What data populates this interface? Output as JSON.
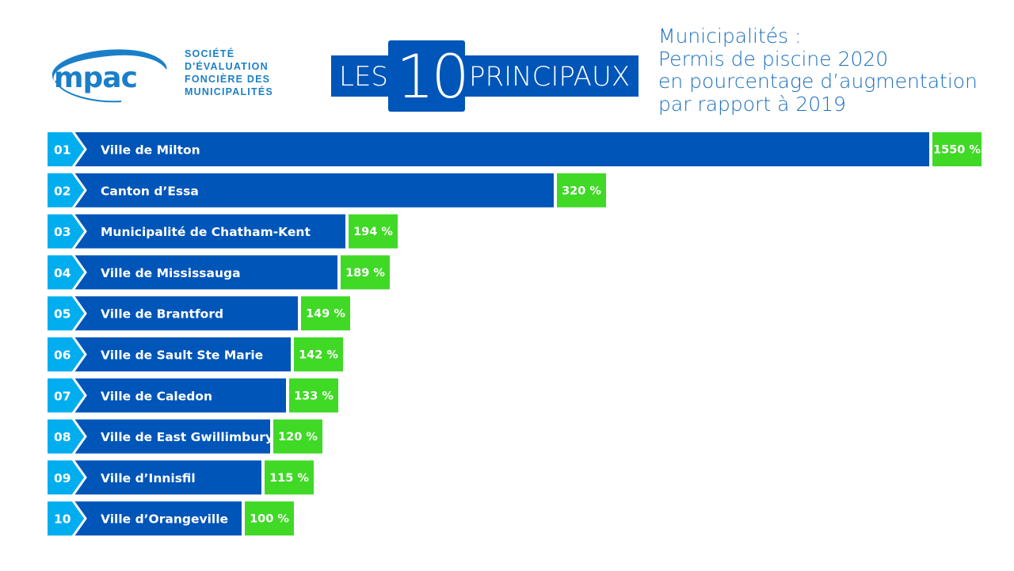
{
  "logo": {
    "wordmark": "mpac",
    "tagline": [
      "SOCIÉTÉ",
      "D'ÉVALUATION",
      "FONCIÈRE DES",
      "MUNICIPALITÉS"
    ]
  },
  "banner": {
    "left": "LES",
    "number": "10",
    "right": "PRINCIPAUX"
  },
  "title": [
    "Municipalités :",
    "Permis de piscine 2020",
    "en pourcentage d’augmentation",
    "par rapport à 2019"
  ],
  "colors": {
    "bar": "#0055b8",
    "rank": "#00aeef",
    "value": "#3fd926",
    "title": "#1a6fc0"
  },
  "chart_data": {
    "type": "bar",
    "orientation": "horizontal",
    "title": "Municipalités : Permis de piscine 2020 en pourcentage d’augmentation par rapport à 2019",
    "ranks": [
      "01",
      "02",
      "03",
      "04",
      "05",
      "06",
      "07",
      "08",
      "09",
      "10"
    ],
    "categories": [
      "Ville de Milton",
      "Canton d’Essa",
      "Municipalité de Chatham-Kent",
      "Ville de Mississauga",
      "Ville de Brantford",
      "Ville de Sault Ste Marie",
      "Ville de Caledon",
      "Ville de East Gwillimbury",
      "Ville d’Innisfil",
      "Ville d’Orangeville"
    ],
    "values": [
      1550,
      320,
      194,
      189,
      149,
      142,
      133,
      120,
      115,
      100
    ],
    "value_labels": [
      "1550 %",
      "320 %",
      "194 %",
      "189 %",
      "149 %",
      "142 %",
      "133 %",
      "120 %",
      "115 %",
      "100 %"
    ],
    "unit": "%"
  }
}
